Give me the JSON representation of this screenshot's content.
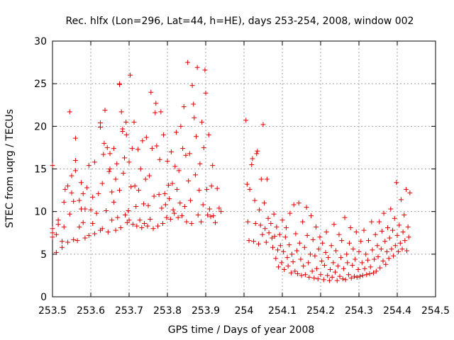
{
  "chart_data": {
    "type": "scatter",
    "title": "Rec. hlfx (Lon=296, Lat=44, h=HE), days 253-254, 2008, window 002",
    "xlabel": "GPS time / Days of year 2008",
    "ylabel": "STEC from uqrg / TECUs",
    "xlim": [
      253.5,
      254.5
    ],
    "ylim": [
      0,
      30
    ],
    "grid": true,
    "marker": "plus",
    "color": "#e00000",
    "x_ticks": [
      253.5,
      253.6,
      253.7,
      253.8,
      253.9,
      254.0,
      254.1,
      254.2,
      254.3,
      254.4,
      254.5
    ],
    "x_tick_labels": [
      "253.5",
      "253.6",
      "253.7",
      "253.8",
      "253.9",
      "254",
      "254.1",
      "254.2",
      "254.3",
      "254.4",
      "254.5"
    ],
    "y_ticks": [
      0,
      5,
      10,
      15,
      20,
      25,
      30
    ],
    "y_tick_labels": [
      "0",
      "5",
      "10",
      "15",
      "20",
      "25",
      "30"
    ],
    "points": [
      [
        253.5,
        7.0
      ],
      [
        253.5,
        7.5
      ],
      [
        253.5,
        8.0
      ],
      [
        253.5,
        15.4
      ],
      [
        253.51,
        5.2
      ],
      [
        253.51,
        7.3
      ],
      [
        253.515,
        8.5
      ],
      [
        253.515,
        9.0
      ],
      [
        253.525,
        5.8
      ],
      [
        253.525,
        6.5
      ],
      [
        253.53,
        8.2
      ],
      [
        253.53,
        11.1
      ],
      [
        253.533,
        12.6
      ],
      [
        253.54,
        6.4
      ],
      [
        253.54,
        13.0
      ],
      [
        253.545,
        9.7
      ],
      [
        253.545,
        21.7
      ],
      [
        253.55,
        12.2
      ],
      [
        253.55,
        14.2
      ],
      [
        253.555,
        6.7
      ],
      [
        253.555,
        11.2
      ],
      [
        253.56,
        14.8
      ],
      [
        253.56,
        18.6
      ],
      [
        253.56,
        16.0
      ],
      [
        253.565,
        6.6
      ],
      [
        253.57,
        8.2
      ],
      [
        253.57,
        11.3
      ],
      [
        253.575,
        10.3
      ],
      [
        253.575,
        13.4
      ],
      [
        253.58,
        8.7
      ],
      [
        253.58,
        12.1
      ],
      [
        253.585,
        6.9
      ],
      [
        253.585,
        10.3
      ],
      [
        253.59,
        12.8
      ],
      [
        253.595,
        15.4
      ],
      [
        253.595,
        7.2
      ],
      [
        253.6,
        10.2
      ],
      [
        253.605,
        8.6
      ],
      [
        253.605,
        11.7
      ],
      [
        253.61,
        15.8
      ],
      [
        253.61,
        7.4
      ],
      [
        253.615,
        9.8
      ],
      [
        253.62,
        12.1
      ],
      [
        253.625,
        7.8
      ],
      [
        253.625,
        19.9
      ],
      [
        253.625,
        20.4
      ],
      [
        253.63,
        8.0
      ],
      [
        253.63,
        13.3
      ],
      [
        253.633,
        16.7
      ],
      [
        253.635,
        18.0
      ],
      [
        253.637,
        21.9
      ],
      [
        253.64,
        10.1
      ],
      [
        253.643,
        17.5
      ],
      [
        253.645,
        7.6
      ],
      [
        253.648,
        14.7
      ],
      [
        253.65,
        15.0
      ],
      [
        253.65,
        16.8
      ],
      [
        253.655,
        9.0
      ],
      [
        253.655,
        12.3
      ],
      [
        253.66,
        17.4
      ],
      [
        253.66,
        11.1
      ],
      [
        253.665,
        13.8
      ],
      [
        253.665,
        7.8
      ],
      [
        253.668,
        15.6
      ],
      [
        253.67,
        9.3
      ],
      [
        253.675,
        25.0
      ],
      [
        253.675,
        24.9
      ],
      [
        253.675,
        12.5
      ],
      [
        253.678,
        8.1
      ],
      [
        253.68,
        21.7
      ],
      [
        253.683,
        19.4
      ],
      [
        253.683,
        19.7
      ],
      [
        253.685,
        14.5
      ],
      [
        253.688,
        16.3
      ],
      [
        253.69,
        9.6
      ],
      [
        253.692,
        20.5
      ],
      [
        253.693,
        19.0
      ],
      [
        253.695,
        8.7
      ],
      [
        253.698,
        10.1
      ],
      [
        253.7,
        15.8
      ],
      [
        253.7,
        9.0
      ],
      [
        253.703,
        26.0
      ],
      [
        253.705,
        12.9
      ],
      [
        253.708,
        17.4
      ],
      [
        253.71,
        8.5
      ],
      [
        253.713,
        20.5
      ],
      [
        253.715,
        13.0
      ],
      [
        253.718,
        10.6
      ],
      [
        253.72,
        8.3
      ],
      [
        253.723,
        17.3
      ],
      [
        253.725,
        12.5
      ],
      [
        253.728,
        9.0
      ],
      [
        253.73,
        15.0
      ],
      [
        253.733,
        8.1
      ],
      [
        253.735,
        18.3
      ],
      [
        253.738,
        10.9
      ],
      [
        253.74,
        8.6
      ],
      [
        253.743,
        13.8
      ],
      [
        253.745,
        18.7
      ],
      [
        253.748,
        8.3
      ],
      [
        253.75,
        10.7
      ],
      [
        253.753,
        14.2
      ],
      [
        253.755,
        9.1
      ],
      [
        253.757,
        24.0
      ],
      [
        253.76,
        17.4
      ],
      [
        253.763,
        8.0
      ],
      [
        253.765,
        11.8
      ],
      [
        253.768,
        21.6
      ],
      [
        253.77,
        22.7
      ],
      [
        253.772,
        17.7
      ],
      [
        253.775,
        8.3
      ],
      [
        253.778,
        12.0
      ],
      [
        253.78,
        16.1
      ],
      [
        253.783,
        21.7
      ],
      [
        253.785,
        10.4
      ],
      [
        253.788,
        8.6
      ],
      [
        253.79,
        19.0
      ],
      [
        253.793,
        12.1
      ],
      [
        253.795,
        10.8
      ],
      [
        253.798,
        9.3
      ],
      [
        253.8,
        15.9
      ],
      [
        253.803,
        13.1
      ],
      [
        253.805,
        11.5
      ],
      [
        253.808,
        9.1
      ],
      [
        253.81,
        17.0
      ],
      [
        253.813,
        13.3
      ],
      [
        253.815,
        10.2
      ],
      [
        253.818,
        9.8
      ],
      [
        253.82,
        15.3
      ],
      [
        253.823,
        19.3
      ],
      [
        253.825,
        12.6
      ],
      [
        253.828,
        9.3
      ],
      [
        253.83,
        14.8
      ],
      [
        253.833,
        11.0
      ],
      [
        253.835,
        20.0
      ],
      [
        253.838,
        9.5
      ],
      [
        253.84,
        17.4
      ],
      [
        253.843,
        22.3
      ],
      [
        253.845,
        10.6
      ],
      [
        253.848,
        16.6
      ],
      [
        253.85,
        8.8
      ],
      [
        253.853,
        27.5
      ],
      [
        253.855,
        13.6
      ],
      [
        253.858,
        16.8
      ],
      [
        253.86,
        11.3
      ],
      [
        253.863,
        8.6
      ],
      [
        253.865,
        24.8
      ],
      [
        253.868,
        22.6
      ],
      [
        253.87,
        21.0
      ],
      [
        253.873,
        14.3
      ],
      [
        253.875,
        18.8
      ],
      [
        253.878,
        26.9
      ],
      [
        253.88,
        9.6
      ],
      [
        253.883,
        12.5
      ],
      [
        253.885,
        15.6
      ],
      [
        253.888,
        8.8
      ],
      [
        253.89,
        20.5
      ],
      [
        253.893,
        10.8
      ],
      [
        253.895,
        17.5
      ],
      [
        253.898,
        26.6
      ],
      [
        253.9,
        23.9
      ],
      [
        253.903,
        12.6
      ],
      [
        253.905,
        9.6
      ],
      [
        253.908,
        19.0
      ],
      [
        253.91,
        10.3
      ],
      [
        253.913,
        9.4
      ],
      [
        253.915,
        13.0
      ],
      [
        253.918,
        15.4
      ],
      [
        253.92,
        9.5
      ],
      [
        253.925,
        8.7
      ],
      [
        253.93,
        12.7
      ],
      [
        253.935,
        10.4
      ],
      [
        253.94,
        10.0
      ],
      [
        254.005,
        20.7
      ],
      [
        254.008,
        13.2
      ],
      [
        254.01,
        8.8
      ],
      [
        254.013,
        6.6
      ],
      [
        254.015,
        12.6
      ],
      [
        254.02,
        15.5
      ],
      [
        254.022,
        16.2
      ],
      [
        254.025,
        6.5
      ],
      [
        254.028,
        11.3
      ],
      [
        254.03,
        8.6
      ],
      [
        254.033,
        16.8
      ],
      [
        254.035,
        17.1
      ],
      [
        254.038,
        6.2
      ],
      [
        254.04,
        10.2
      ],
      [
        254.043,
        8.4
      ],
      [
        254.045,
        13.8
      ],
      [
        254.048,
        7.3
      ],
      [
        254.05,
        20.2
      ],
      [
        254.053,
        11.0
      ],
      [
        254.055,
        8.0
      ],
      [
        254.058,
        6.4
      ],
      [
        254.06,
        13.8
      ],
      [
        254.063,
        9.2
      ],
      [
        254.065,
        7.5
      ],
      [
        254.07,
        8.6
      ],
      [
        254.073,
        6.9
      ],
      [
        254.075,
        5.8
      ],
      [
        254.078,
        9.7
      ],
      [
        254.08,
        7.1
      ],
      [
        254.083,
        4.5
      ],
      [
        254.085,
        8.2
      ],
      [
        254.088,
        5.5
      ],
      [
        254.09,
        3.5
      ],
      [
        254.093,
        7.3
      ],
      [
        254.095,
        6.0
      ],
      [
        254.098,
        4.0
      ],
      [
        254.1,
        9.0
      ],
      [
        254.103,
        5.3
      ],
      [
        254.105,
        3.2
      ],
      [
        254.108,
        7.0
      ],
      [
        254.11,
        8.1
      ],
      [
        254.113,
        4.6
      ],
      [
        254.115,
        3.6
      ],
      [
        254.118,
        6.1
      ],
      [
        254.12,
        9.8
      ],
      [
        254.123,
        2.8
      ],
      [
        254.125,
        5.0
      ],
      [
        254.128,
        4.1
      ],
      [
        254.13,
        10.8
      ],
      [
        254.133,
        3.0
      ],
      [
        254.135,
        7.4
      ],
      [
        254.138,
        5.4
      ],
      [
        254.14,
        2.7
      ],
      [
        254.143,
        11.0
      ],
      [
        254.145,
        6.3
      ],
      [
        254.148,
        4.4
      ],
      [
        254.15,
        2.5
      ],
      [
        254.153,
        8.8
      ],
      [
        254.155,
        3.6
      ],
      [
        254.158,
        5.8
      ],
      [
        254.16,
        2.6
      ],
      [
        254.163,
        10.5
      ],
      [
        254.165,
        7.2
      ],
      [
        254.168,
        4.0
      ],
      [
        254.17,
        2.3
      ],
      [
        254.173,
        5.0
      ],
      [
        254.175,
        9.5
      ],
      [
        254.178,
        3.0
      ],
      [
        254.18,
        6.7
      ],
      [
        254.183,
        2.2
      ],
      [
        254.185,
        4.8
      ],
      [
        254.188,
        8.2
      ],
      [
        254.19,
        3.3
      ],
      [
        254.193,
        2.1
      ],
      [
        254.195,
        5.6
      ],
      [
        254.198,
        7.0
      ],
      [
        254.2,
        2.6
      ],
      [
        254.203,
        4.2
      ],
      [
        254.205,
        6.3
      ],
      [
        254.208,
        2.0
      ],
      [
        254.21,
        3.7
      ],
      [
        254.213,
        5.2
      ],
      [
        254.215,
        7.6
      ],
      [
        254.218,
        2.5
      ],
      [
        254.22,
        4.6
      ],
      [
        254.223,
        1.9
      ],
      [
        254.225,
        3.2
      ],
      [
        254.228,
        6.0
      ],
      [
        254.23,
        2.3
      ],
      [
        254.233,
        4.0
      ],
      [
        254.235,
        8.5
      ],
      [
        254.238,
        2.9
      ],
      [
        254.24,
        5.4
      ],
      [
        254.243,
        1.9
      ],
      [
        254.245,
        3.6
      ],
      [
        254.248,
        7.3
      ],
      [
        254.25,
        2.4
      ],
      [
        254.253,
        4.6
      ],
      [
        254.255,
        6.6
      ],
      [
        254.258,
        2.1
      ],
      [
        254.26,
        3.3
      ],
      [
        254.263,
        9.3
      ],
      [
        254.265,
        2.0
      ],
      [
        254.268,
        5.0
      ],
      [
        254.27,
        4.0
      ],
      [
        254.273,
        2.6
      ],
      [
        254.275,
        6.3
      ],
      [
        254.278,
        8.1
      ],
      [
        254.28,
        2.2
      ],
      [
        254.283,
        3.7
      ],
      [
        254.285,
        5.6
      ],
      [
        254.288,
        2.4
      ],
      [
        254.29,
        4.4
      ],
      [
        254.293,
        7.6
      ],
      [
        254.295,
        2.3
      ],
      [
        254.298,
        3.2
      ],
      [
        254.3,
        5.3
      ],
      [
        254.303,
        2.4
      ],
      [
        254.305,
        6.5
      ],
      [
        254.308,
        4.0
      ],
      [
        254.31,
        2.5
      ],
      [
        254.313,
        7.8
      ],
      [
        254.315,
        3.3
      ],
      [
        254.318,
        5.0
      ],
      [
        254.32,
        2.6
      ],
      [
        254.323,
        4.3
      ],
      [
        254.325,
        6.6
      ],
      [
        254.328,
        2.7
      ],
      [
        254.33,
        3.5
      ],
      [
        254.333,
        8.8
      ],
      [
        254.335,
        5.5
      ],
      [
        254.338,
        2.8
      ],
      [
        254.34,
        4.4
      ],
      [
        254.343,
        7.3
      ],
      [
        254.345,
        3.0
      ],
      [
        254.348,
        6.0
      ],
      [
        254.35,
        4.7
      ],
      [
        254.353,
        8.8
      ],
      [
        254.355,
        3.4
      ],
      [
        254.358,
        5.6
      ],
      [
        254.36,
        7.7
      ],
      [
        254.363,
        4.2
      ],
      [
        254.365,
        9.8
      ],
      [
        254.368,
        6.5
      ],
      [
        254.37,
        3.8
      ],
      [
        254.373,
        5.3
      ],
      [
        254.375,
        8.1
      ],
      [
        254.378,
        4.5
      ],
      [
        254.38,
        6.9
      ],
      [
        254.383,
        10.3
      ],
      [
        254.385,
        5.6
      ],
      [
        254.388,
        7.8
      ],
      [
        254.39,
        4.8
      ],
      [
        254.393,
        9.2
      ],
      [
        254.395,
        6.0
      ],
      [
        254.398,
        13.4
      ],
      [
        254.4,
        7.2
      ],
      [
        254.403,
        5.3
      ],
      [
        254.405,
        8.4
      ],
      [
        254.408,
        6.3
      ],
      [
        254.41,
        11.4
      ],
      [
        254.413,
        5.6
      ],
      [
        254.415,
        7.6
      ],
      [
        254.418,
        9.6
      ],
      [
        254.42,
        6.6
      ],
      [
        254.423,
        12.6
      ],
      [
        254.425,
        5.4
      ],
      [
        254.428,
        8.2
      ],
      [
        254.43,
        7.0
      ],
      [
        254.433,
        12.2
      ]
    ]
  }
}
